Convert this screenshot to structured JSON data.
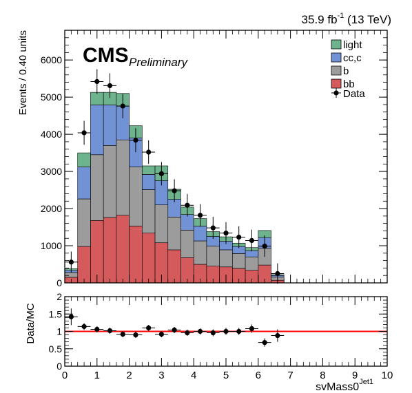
{
  "header": {
    "lumi_prefix": "35.9 fb",
    "lumi_exp": "-1",
    "lumi_suffix": " (13 TeV)",
    "cms": "CMS",
    "preliminary": "Preliminary"
  },
  "axes": {
    "xlabel_main": "svMass0",
    "xlabel_sup": "Jet1",
    "ylabel_top": "Events / 0.40 units",
    "ylabel_ratio": "Data/MC"
  },
  "legend": {
    "light": "light",
    "cc": "cc,c",
    "b": "b",
    "bb": "bb",
    "data": "Data"
  },
  "colors": {
    "light": "#6db38d",
    "cc": "#7192d4",
    "b": "#9c9c9c",
    "bb": "#d45a5c",
    "ratio_line": "#ff0000"
  },
  "chart_data": [
    {
      "type": "stacked-bar",
      "xlim": [
        0,
        10
      ],
      "ylim": [
        0,
        6800
      ],
      "bin_width": 0.4,
      "x_bin_low_edges": [
        0,
        0.4,
        0.8,
        1.2,
        1.6,
        2.0,
        2.4,
        2.8,
        3.2,
        3.6,
        4.0,
        4.4,
        4.8,
        5.2,
        5.6,
        6.0,
        6.4,
        6.8
      ],
      "y_ticks": [
        0,
        1000,
        2000,
        3000,
        4000,
        5000,
        6000
      ],
      "y_tick_labels": [
        "0",
        "1000",
        "2000",
        "3000",
        "4000",
        "5000",
        "6000"
      ],
      "series": [
        {
          "name": "bb",
          "values": [
            150,
            980,
            1680,
            1760,
            1820,
            1530,
            1340,
            1080,
            890,
            680,
            500,
            450,
            430,
            390,
            340,
            480,
            70,
            0
          ]
        },
        {
          "name": "b",
          "values": [
            130,
            1280,
            1770,
            1940,
            2030,
            1590,
            1170,
            1020,
            880,
            740,
            630,
            540,
            460,
            400,
            360,
            450,
            90,
            0
          ]
        },
        {
          "name": "cc,c",
          "values": [
            60,
            860,
            1340,
            1090,
            910,
            780,
            410,
            650,
            480,
            420,
            400,
            260,
            230,
            190,
            170,
            290,
            40,
            0
          ]
        },
        {
          "name": "light",
          "values": [
            40,
            380,
            340,
            340,
            340,
            330,
            230,
            400,
            270,
            200,
            200,
            130,
            120,
            90,
            80,
            190,
            20,
            0
          ]
        }
      ],
      "data_points": {
        "name": "Data",
        "x": [
          0.2,
          0.6,
          1.0,
          1.4,
          1.8,
          2.2,
          2.6,
          3.0,
          3.4,
          3.8,
          4.2,
          4.6,
          5.0,
          5.4,
          5.8,
          6.2,
          6.6
        ],
        "y": [
          560,
          4040,
          5420,
          5310,
          4760,
          3840,
          3520,
          2940,
          2480,
          2090,
          1820,
          1480,
          1340,
          1230,
          1140,
          990,
          250
        ]
      }
    },
    {
      "type": "scatter",
      "xlim": [
        0,
        10
      ],
      "ylim": [
        0,
        2
      ],
      "x_ticks": [
        0,
        1,
        2,
        3,
        4,
        5,
        6,
        7,
        8,
        9,
        10
      ],
      "x_tick_labels": [
        "0",
        "1",
        "2",
        "3",
        "4",
        "5",
        "6",
        "7",
        "8",
        "9",
        "10"
      ],
      "y_ticks": [
        0,
        0.5,
        1,
        1.5,
        2
      ],
      "y_tick_labels": [
        "0",
        "0.5",
        "1",
        "1.5",
        "2"
      ],
      "reference_line": 1,
      "x": [
        0.2,
        0.6,
        1.0,
        1.4,
        1.8,
        2.2,
        2.6,
        3.0,
        3.4,
        3.8,
        4.2,
        4.6,
        5.0,
        5.4,
        5.8,
        6.2,
        6.6
      ],
      "y": [
        1.42,
        1.14,
        1.06,
        1.02,
        0.92,
        0.9,
        1.1,
        0.92,
        1.04,
        0.96,
        1.0,
        0.96,
        1.0,
        1.0,
        1.08,
        0.68,
        0.88
      ],
      "yerr": [
        0.18,
        0.04,
        0.03,
        0.03,
        0.03,
        0.03,
        0.03,
        0.03,
        0.03,
        0.03,
        0.03,
        0.04,
        0.04,
        0.04,
        0.06,
        0.06,
        0.12
      ]
    }
  ]
}
